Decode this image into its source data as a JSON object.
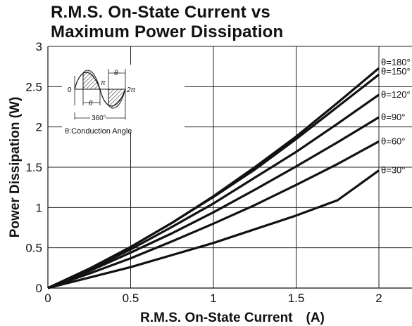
{
  "chart_data": {
    "type": "line",
    "title_lines": [
      "R.M.S. On-State Current vs",
      "Maximum Power Dissipation"
    ],
    "xlabel": "R.M.S. On-State Current　(A)",
    "ylabel": "Power Dissipation (W)",
    "xlim": [
      0,
      2.2
    ],
    "ylim": [
      0,
      3
    ],
    "x_ticks": [
      0,
      0.5,
      1,
      1.5,
      2
    ],
    "y_ticks": [
      0,
      0.5,
      1,
      1.5,
      2,
      2.5,
      3
    ],
    "x_tick_labels": [
      "0",
      "0.5",
      "1",
      "1.5",
      "2"
    ],
    "y_tick_labels": [
      "0",
      "0.5",
      "1",
      "1.5",
      "2",
      "2.5",
      "3"
    ],
    "grid": true,
    "series": [
      {
        "name": "θ=180°",
        "x": [
          0,
          0.25,
          0.5,
          0.75,
          1,
          1.25,
          1.5,
          1.75,
          2
        ],
        "y": [
          0,
          0.24,
          0.51,
          0.81,
          1.14,
          1.5,
          1.88,
          2.3,
          2.73
        ]
      },
      {
        "name": "θ=150°",
        "x": [
          0,
          0.25,
          0.5,
          0.75,
          1,
          1.25,
          1.5,
          1.75,
          2
        ],
        "y": [
          0,
          0.24,
          0.51,
          0.81,
          1.13,
          1.47,
          1.85,
          2.25,
          2.65
        ]
      },
      {
        "name": "θ=120°",
        "x": [
          0,
          0.25,
          0.5,
          0.75,
          1,
          1.25,
          1.5,
          1.75,
          2
        ],
        "y": [
          0,
          0.23,
          0.48,
          0.76,
          1.05,
          1.37,
          1.69,
          2.04,
          2.4
        ]
      },
      {
        "name": "θ=90°",
        "x": [
          0,
          0.25,
          0.5,
          0.75,
          1,
          1.25,
          1.5,
          1.75,
          2
        ],
        "y": [
          0,
          0.21,
          0.44,
          0.68,
          0.94,
          1.22,
          1.51,
          1.81,
          2.12
        ]
      },
      {
        "name": "θ=60°",
        "x": [
          0,
          0.25,
          0.5,
          0.75,
          1,
          1.25,
          1.5,
          1.75,
          2
        ],
        "y": [
          0,
          0.18,
          0.37,
          0.58,
          0.8,
          1.03,
          1.28,
          1.54,
          1.82
        ]
      },
      {
        "name": "θ=30°",
        "x": [
          0,
          0.25,
          0.5,
          0.75,
          1,
          1.25,
          1.5,
          1.75,
          2
        ],
        "y": [
          0,
          0.13,
          0.26,
          0.41,
          0.56,
          0.73,
          0.9,
          1.09,
          1.46
        ]
      }
    ],
    "inset": {
      "zero_label": "0",
      "pi_label": "π",
      "two_pi_label": "2π",
      "theta_label": "θ",
      "angle_label": "360°",
      "caption": "θ:Conduction Angle"
    }
  },
  "colors": {
    "line": "#111111",
    "grid": "#222222",
    "background": "#ffffff"
  }
}
